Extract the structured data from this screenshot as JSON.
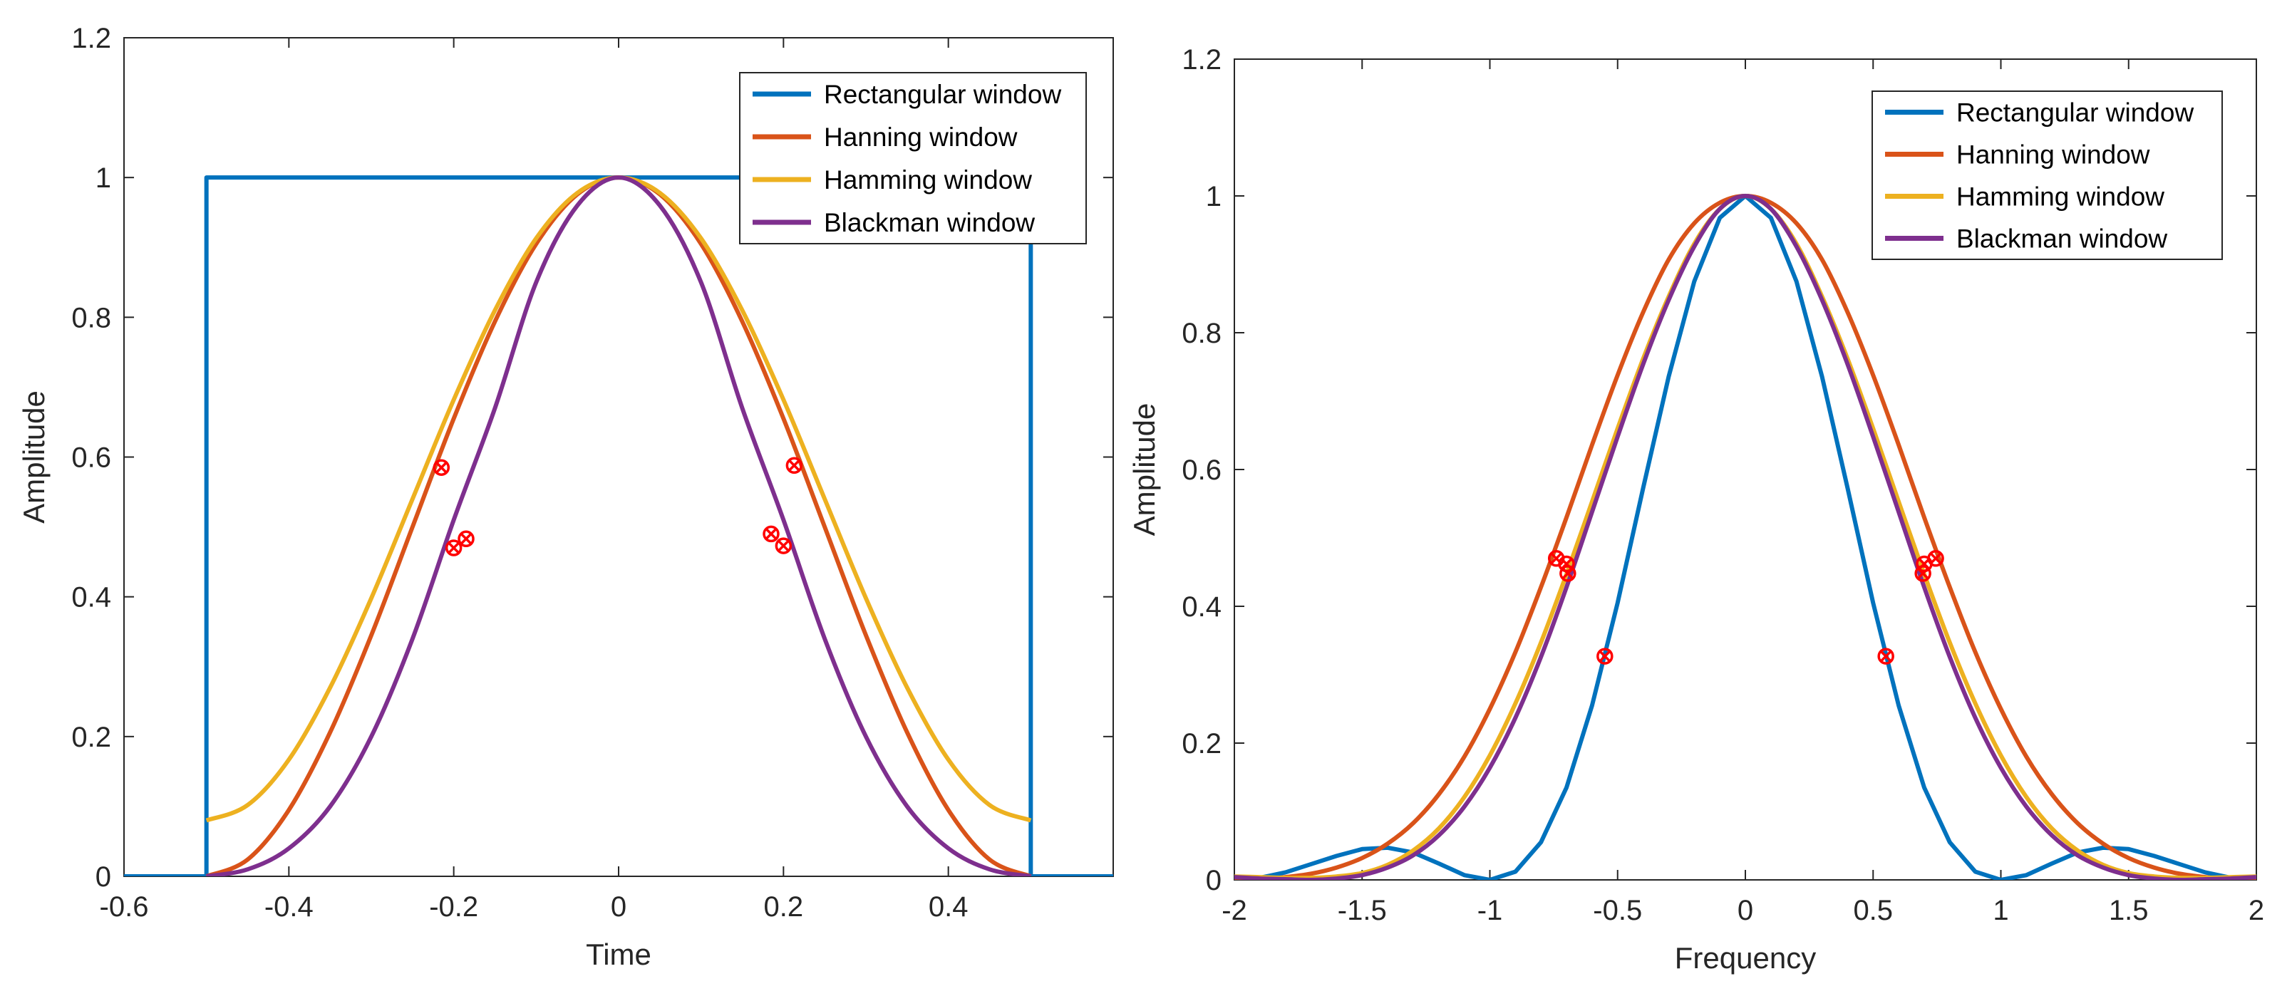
{
  "chart_data": [
    {
      "type": "line",
      "xlabel": "Time",
      "ylabel": "Amplitude",
      "xlim": [
        -0.6,
        0.6
      ],
      "ylim": [
        0,
        1.2
      ],
      "xticks": [
        -0.6,
        -0.4,
        -0.2,
        0,
        0.2,
        0.4
      ],
      "yticks": [
        0,
        0.2,
        0.4,
        0.6,
        0.8,
        1,
        1.2
      ],
      "xtick_labels": [
        "-0.6",
        "-0.4",
        "-0.2",
        "0",
        "0.2",
        "0.4"
      ],
      "ytick_labels": [
        "0",
        "0.2",
        "0.4",
        "0.6",
        "0.8",
        "1",
        "1.2"
      ],
      "grid": false,
      "legend_position": "top-right",
      "series": [
        {
          "name": "Rectangular window",
          "color": "#0072BD",
          "x": [
            -0.6,
            -0.5,
            -0.5,
            0.5,
            0.5,
            0.6
          ],
          "y": [
            0,
            0,
            1,
            1,
            0,
            0
          ]
        },
        {
          "name": "Hanning window",
          "color": "#D95319",
          "x": [
            -0.5,
            -0.45,
            -0.4,
            -0.35,
            -0.3,
            -0.25,
            -0.2,
            -0.15,
            -0.1,
            -0.05,
            0,
            0.05,
            0.1,
            0.15,
            0.2,
            0.25,
            0.3,
            0.35,
            0.4,
            0.45,
            0.5
          ],
          "y": [
            0,
            0.024,
            0.095,
            0.206,
            0.345,
            0.5,
            0.655,
            0.794,
            0.905,
            0.976,
            1,
            0.976,
            0.905,
            0.794,
            0.655,
            0.5,
            0.345,
            0.206,
            0.095,
            0.024,
            0
          ]
        },
        {
          "name": "Hamming window",
          "color": "#EDB120",
          "x": [
            -0.5,
            -0.45,
            -0.4,
            -0.35,
            -0.3,
            -0.25,
            -0.2,
            -0.15,
            -0.1,
            -0.05,
            0,
            0.05,
            0.1,
            0.15,
            0.2,
            0.25,
            0.3,
            0.35,
            0.4,
            0.45,
            0.5
          ],
          "y": [
            0.08,
            0.102,
            0.167,
            0.27,
            0.398,
            0.54,
            0.682,
            0.81,
            0.913,
            0.978,
            1,
            0.978,
            0.913,
            0.81,
            0.682,
            0.54,
            0.398,
            0.27,
            0.167,
            0.102,
            0.08
          ]
        },
        {
          "name": "Blackman window",
          "color": "#7E2F8E",
          "x": [
            -0.5,
            -0.45,
            -0.4,
            -0.35,
            -0.3,
            -0.25,
            -0.2,
            -0.15,
            -0.1,
            -0.05,
            0,
            0.05,
            0.1,
            0.15,
            0.2,
            0.25,
            0.3,
            0.35,
            0.4,
            0.45,
            0.5
          ],
          "y": [
            0,
            0.01,
            0.04,
            0.1,
            0.2,
            0.34,
            0.51,
            0.67,
            0.85,
            0.96,
            1,
            0.96,
            0.85,
            0.67,
            0.51,
            0.34,
            0.2,
            0.1,
            0.04,
            0.01,
            0
          ]
        }
      ],
      "markers": {
        "color": "#FF0000",
        "points": [
          {
            "x": -0.215,
            "y": 0.585
          },
          {
            "x": -0.2,
            "y": 0.47
          },
          {
            "x": -0.185,
            "y": 0.483
          },
          {
            "x": 0.185,
            "y": 0.49
          },
          {
            "x": 0.2,
            "y": 0.473
          },
          {
            "x": 0.213,
            "y": 0.588
          }
        ]
      }
    },
    {
      "type": "line",
      "xlabel": "Frequency",
      "ylabel": "Amplitude",
      "xlim": [
        -2,
        2
      ],
      "ylim": [
        0,
        1.2
      ],
      "xticks": [
        -2,
        -1.5,
        -1,
        -0.5,
        0,
        0.5,
        1,
        1.5,
        2
      ],
      "yticks": [
        0,
        0.2,
        0.4,
        0.6,
        0.8,
        1,
        1.2
      ],
      "xtick_labels": [
        "-2",
        "-1.5",
        "-1",
        "-0.5",
        "0",
        "0.5",
        "1",
        "1.5",
        "2"
      ],
      "ytick_labels": [
        "0",
        "0.2",
        "0.4",
        "0.6",
        "0.8",
        "1",
        "1.2"
      ],
      "grid": false,
      "legend_position": "top-right",
      "series": [
        {
          "name": "Rectangular window",
          "color": "#0072BD",
          "x": [
            -2,
            -1.9,
            -1.8,
            -1.7,
            -1.6,
            -1.5,
            -1.4,
            -1.3,
            -1.2,
            -1.1,
            -1,
            -0.9,
            -0.8,
            -0.7,
            -0.6,
            -0.5,
            -0.4,
            -0.3,
            -0.2,
            -0.1,
            0,
            0.1,
            0.2,
            0.3,
            0.4,
            0.5,
            0.6,
            0.7,
            0.8,
            0.9,
            1,
            1.1,
            1.2,
            1.3,
            1.4,
            1.5,
            1.6,
            1.7,
            1.8,
            1.9,
            2
          ],
          "y": [
            0,
            0.003,
            0.011,
            0.023,
            0.035,
            0.045,
            0.047,
            0.04,
            0.024,
            0.007,
            0,
            0.012,
            0.055,
            0.135,
            0.255,
            0.405,
            0.573,
            0.736,
            0.875,
            0.968,
            1,
            0.968,
            0.875,
            0.736,
            0.573,
            0.405,
            0.255,
            0.135,
            0.055,
            0.012,
            0,
            0.007,
            0.024,
            0.04,
            0.047,
            0.045,
            0.035,
            0.023,
            0.011,
            0.003,
            0
          ]
        },
        {
          "name": "Hanning window",
          "color": "#D95319",
          "x": [
            -2,
            -1.9,
            -1.8,
            -1.7,
            -1.6,
            -1.5,
            -1.4,
            -1.3,
            -1.2,
            -1.1,
            -1,
            -0.9,
            -0.8,
            -0.7,
            -0.6,
            -0.5,
            -0.4,
            -0.3,
            -0.2,
            -0.1,
            0,
            0.1,
            0.2,
            0.3,
            0.4,
            0.5,
            0.6,
            0.7,
            0.8,
            0.9,
            1,
            1.1,
            1.2,
            1.3,
            1.4,
            1.5,
            1.6,
            1.7,
            1.8,
            1.9,
            2
          ],
          "y": [
            0,
            0.001,
            0.004,
            0.009,
            0.018,
            0.032,
            0.053,
            0.083,
            0.125,
            0.18,
            0.25,
            0.333,
            0.428,
            0.53,
            0.636,
            0.738,
            0.83,
            0.907,
            0.96,
            0.99,
            1,
            0.99,
            0.96,
            0.907,
            0.83,
            0.738,
            0.636,
            0.53,
            0.428,
            0.333,
            0.25,
            0.18,
            0.125,
            0.083,
            0.053,
            0.032,
            0.018,
            0.009,
            0.004,
            0.001,
            0
          ]
        },
        {
          "name": "Hamming window",
          "color": "#EDB120",
          "x": [
            -2,
            -1.9,
            -1.8,
            -1.7,
            -1.6,
            -1.5,
            -1.4,
            -1.3,
            -1.2,
            -1.1,
            -1,
            -0.9,
            -0.8,
            -0.7,
            -0.6,
            -0.5,
            -0.4,
            -0.3,
            -0.2,
            -0.1,
            0,
            0.1,
            0.2,
            0.3,
            0.4,
            0.5,
            0.6,
            0.7,
            0.8,
            0.9,
            1,
            1.1,
            1.2,
            1.3,
            1.4,
            1.5,
            1.6,
            1.7,
            1.8,
            1.9,
            2
          ],
          "y": [
            0.005,
            0.004,
            0.003,
            0.003,
            0.005,
            0.01,
            0.022,
            0.043,
            0.075,
            0.121,
            0.182,
            0.258,
            0.347,
            0.447,
            0.553,
            0.66,
            0.762,
            0.853,
            0.93,
            0.981,
            1,
            0.981,
            0.93,
            0.853,
            0.762,
            0.66,
            0.553,
            0.447,
            0.347,
            0.258,
            0.182,
            0.121,
            0.075,
            0.043,
            0.022,
            0.01,
            0.005,
            0.003,
            0.003,
            0.004,
            0.005
          ]
        },
        {
          "name": "Blackman window",
          "color": "#7E2F8E",
          "x": [
            -2,
            -1.9,
            -1.8,
            -1.7,
            -1.6,
            -1.5,
            -1.4,
            -1.3,
            -1.2,
            -1.1,
            -1,
            -0.9,
            -0.8,
            -0.7,
            -0.6,
            -0.5,
            -0.4,
            -0.3,
            -0.2,
            -0.1,
            0,
            0.1,
            0.2,
            0.3,
            0.4,
            0.5,
            0.6,
            0.7,
            0.8,
            0.9,
            1,
            1.1,
            1.2,
            1.3,
            1.4,
            1.5,
            1.6,
            1.7,
            1.8,
            1.9,
            2
          ],
          "y": [
            0.004,
            0.002,
            0.001,
            0,
            0.002,
            0.007,
            0.018,
            0.036,
            0.065,
            0.107,
            0.164,
            0.237,
            0.326,
            0.428,
            0.538,
            0.648,
            0.754,
            0.848,
            0.926,
            0.981,
            1,
            0.981,
            0.926,
            0.848,
            0.754,
            0.648,
            0.538,
            0.428,
            0.326,
            0.237,
            0.164,
            0.107,
            0.065,
            0.036,
            0.018,
            0.007,
            0.002,
            0,
            0.001,
            0.002,
            0.004
          ]
        }
      ],
      "markers": {
        "color": "#FF0000",
        "points": [
          {
            "x": -0.74,
            "y": 0.47
          },
          {
            "x": -0.7,
            "y": 0.462
          },
          {
            "x": -0.695,
            "y": 0.448
          },
          {
            "x": -0.55,
            "y": 0.327
          },
          {
            "x": 0.55,
            "y": 0.327
          },
          {
            "x": 0.695,
            "y": 0.448
          },
          {
            "x": 0.7,
            "y": 0.462
          },
          {
            "x": 0.745,
            "y": 0.47
          }
        ]
      }
    }
  ]
}
